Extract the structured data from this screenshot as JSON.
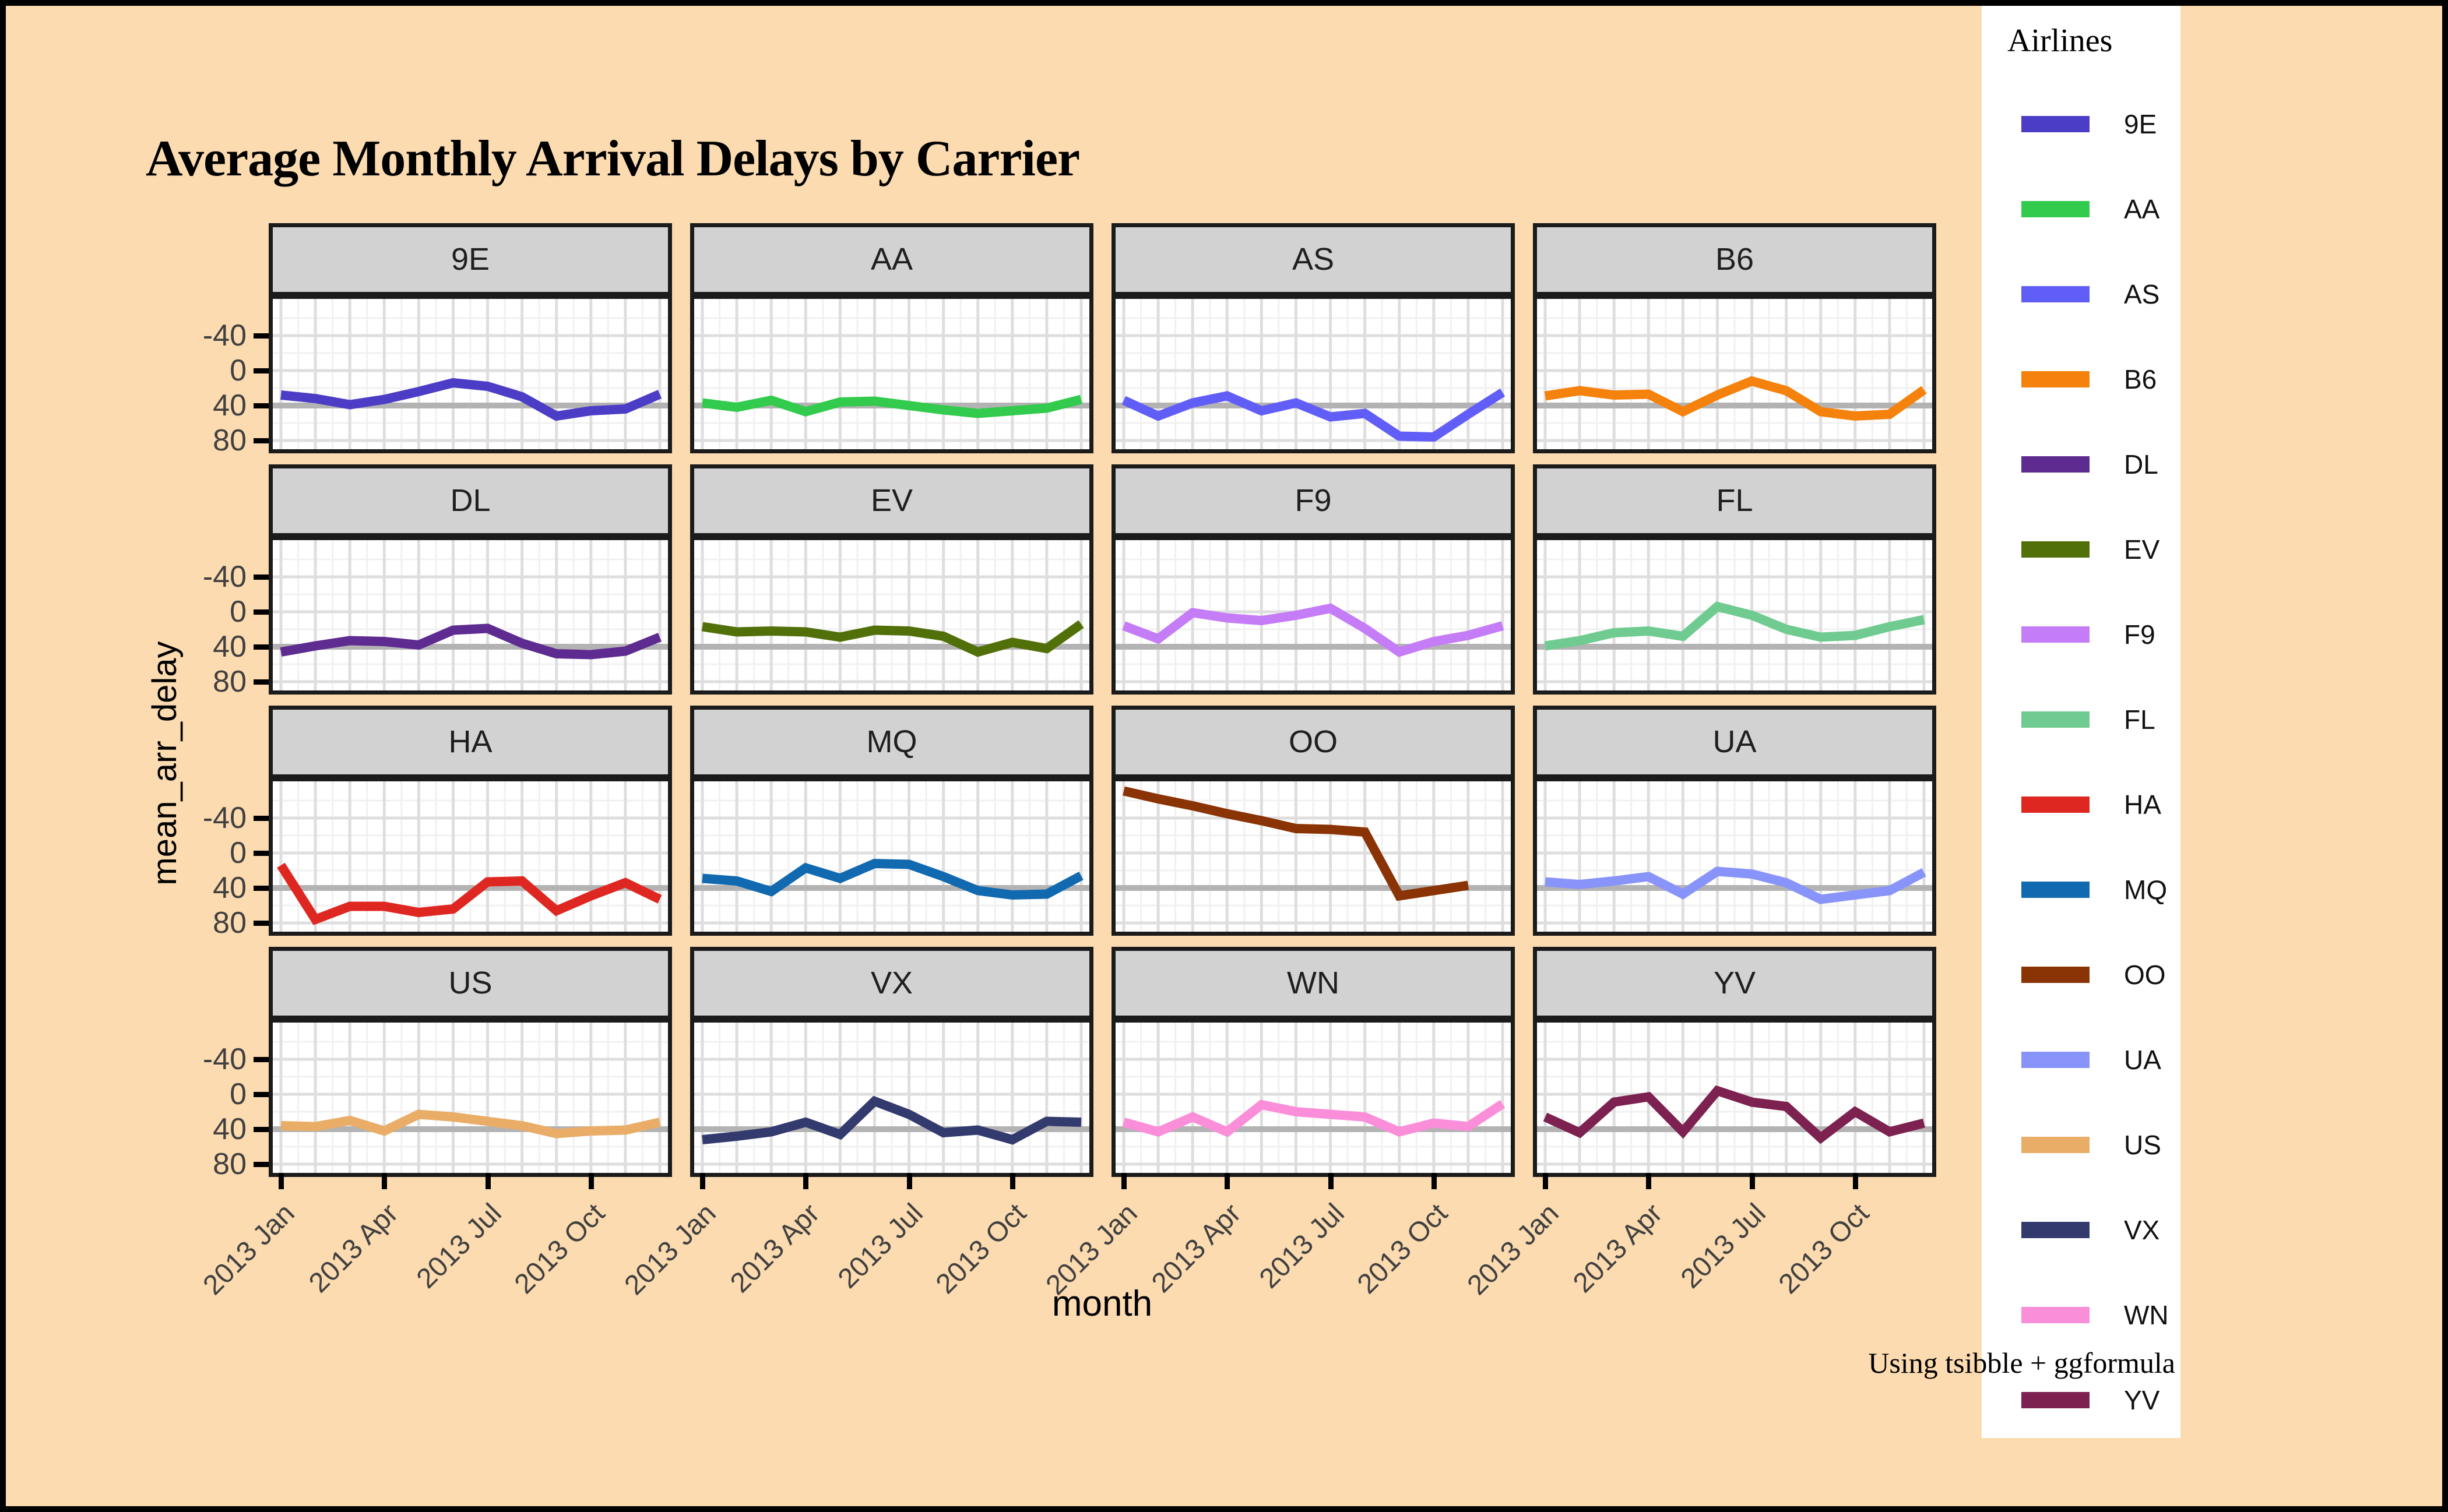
{
  "title": "Average Monthly Arrival Delays by Carrier",
  "caption": "Using tsibble + ggformula",
  "axes": {
    "x_title": "month",
    "y_title": "mean_arr_delay",
    "y_tick_labels": [
      "80",
      "40",
      "0",
      "-40"
    ],
    "x_tick_labels": [
      "2013 Jan",
      "2013 Apr",
      "2013 Jul",
      "2013 Oct"
    ]
  },
  "legend": {
    "title": "Airlines",
    "entries": [
      "9E",
      "AA",
      "AS",
      "B6",
      "DL",
      "EV",
      "F9",
      "FL",
      "HA",
      "MQ",
      "OO",
      "UA",
      "US",
      "VX",
      "WN",
      "YV"
    ]
  },
  "colors": {
    "background": "#FCDBB0",
    "panel": "#FFFFFF",
    "strip": "#D2D2D2",
    "strip_border": "#1b1b1b",
    "grid_major": "#DEDEDE",
    "grid_minor": "#F1F1F1",
    "zero_line": "#B3B3B3",
    "axis_text": "#404040",
    "frame": "#000000",
    "legend_background": "#FFFFFF"
  },
  "chart_data": {
    "type": "line",
    "title": "Average Monthly Arrival Delays by Carrier",
    "xlabel": "month",
    "ylabel": "mean_arr_delay",
    "x": [
      "2013 Jan",
      "2013 Feb",
      "2013 Mar",
      "2013 Apr",
      "2013 May",
      "2013 Jun",
      "2013 Jul",
      "2013 Aug",
      "2013 Sep",
      "2013 Oct",
      "2013 Nov",
      "2013 Dec"
    ],
    "x_axis_breaks": [
      "2013 Jan",
      "2013 Apr",
      "2013 Jul",
      "2013 Oct"
    ],
    "ylim": [
      -50,
      122
    ],
    "y_major_breaks": [
      -40,
      0,
      40,
      80
    ],
    "y_minor_breaks": [
      -20,
      20,
      60,
      100
    ],
    "grid": true,
    "legend_position": "right",
    "facet_layout": [
      [
        "9E",
        "AA",
        "AS",
        "B6"
      ],
      [
        "DL",
        "EV",
        "F9",
        "FL"
      ],
      [
        "HA",
        "MQ",
        "OO",
        "UA"
      ],
      [
        "US",
        "VX",
        "WN",
        "YV"
      ]
    ],
    "series": [
      {
        "name": "9E",
        "color": "#4C3DC6",
        "values": [
          12,
          8,
          1,
          7,
          16,
          26,
          22,
          10,
          -12,
          -6,
          -4,
          13
        ]
      },
      {
        "name": "AA",
        "color": "#32CB4D",
        "values": [
          3,
          -2,
          6,
          -7,
          4,
          5,
          0,
          -5,
          -9,
          -6,
          -3,
          7
        ]
      },
      {
        "name": "AS",
        "color": "#615EF7",
        "values": [
          6,
          -12,
          3,
          11,
          -6,
          3,
          -13,
          -9,
          -35,
          -36,
          -10,
          15
        ]
      },
      {
        "name": "B6",
        "color": "#F5820D",
        "values": [
          11,
          17,
          12,
          13,
          -7,
          12,
          28,
          17,
          -7,
          -12,
          -10,
          18
        ]
      },
      {
        "name": "DL",
        "color": "#5E2B91",
        "values": [
          -6,
          1,
          7,
          6,
          2,
          19,
          21,
          4,
          -8,
          -9,
          -5,
          11
        ]
      },
      {
        "name": "EV",
        "color": "#52700A",
        "values": [
          23,
          17,
          18,
          17,
          11,
          19,
          18,
          12,
          -6,
          5,
          -2,
          26
        ]
      },
      {
        "name": "F9",
        "color": "#C57CF7",
        "values": [
          24,
          9,
          39,
          33,
          30,
          36,
          44,
          21,
          -6,
          6,
          13,
          24
        ]
      },
      {
        "name": "FL",
        "color": "#6FCB8F",
        "values": [
          1,
          7,
          16,
          18,
          12,
          46,
          36,
          20,
          11,
          13,
          23,
          31
        ]
      },
      {
        "name": "HA",
        "color": "#DF2722",
        "values": [
          26,
          -36,
          -21,
          -21,
          -28,
          -24,
          7,
          8,
          -26,
          -9,
          6,
          -13
        ]
      },
      {
        "name": "MQ",
        "color": "#1169B0",
        "values": [
          11,
          8,
          -4,
          23,
          11,
          28,
          27,
          13,
          -3,
          -8,
          -7,
          14
        ]
      },
      {
        "name": "OO",
        "color": "#8A3305",
        "values": [
          111,
          102,
          94,
          85,
          77,
          68,
          67,
          64,
          -9,
          -3,
          3,
          null
        ]
      },
      {
        "name": "UA",
        "color": "#8894F9",
        "values": [
          7,
          4,
          8,
          13,
          -7,
          19,
          16,
          6,
          -13,
          -8,
          -3,
          18
        ]
      },
      {
        "name": "US",
        "color": "#E9AD67",
        "values": [
          4,
          3,
          10,
          -2,
          17,
          14,
          9,
          4,
          -5,
          -2,
          -1,
          8
        ]
      },
      {
        "name": "VX",
        "color": "#333A6E",
        "values": [
          -12,
          -8,
          -3,
          8,
          -6,
          32,
          17,
          -4,
          -1,
          -12,
          9,
          8
        ]
      },
      {
        "name": "WN",
        "color": "#FB8ED9",
        "values": [
          8,
          -3,
          14,
          -3,
          28,
          20,
          17,
          14,
          -3,
          7,
          3,
          29
        ]
      },
      {
        "name": "YV",
        "color": "#7C2150",
        "values": [
          14,
          -4,
          31,
          37,
          -3,
          44,
          31,
          26,
          -10,
          20,
          -3,
          7
        ]
      }
    ]
  }
}
